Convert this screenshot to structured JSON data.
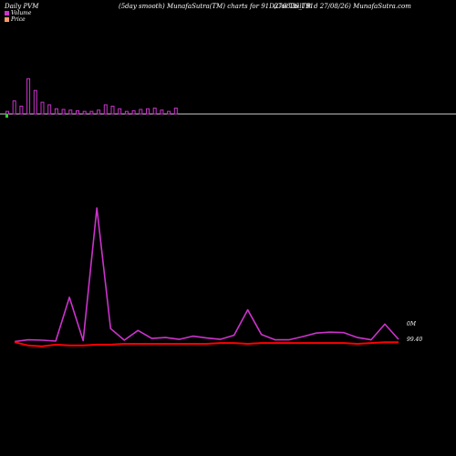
{
  "header": {
    "left": "Daily PVM",
    "middle": "(5day smooth) MunafaSutra(TM) charts for 91D270826_TB",
    "right": "(Goi Tbill 91d 27/08/26) MunafaSutra.com"
  },
  "legend": [
    {
      "label": "Volume",
      "color": "#cc33cc"
    },
    {
      "label": "Price",
      "color": "#ff9966"
    }
  ],
  "colors": {
    "volume_bar": "#cc33cc",
    "axis_line": "#cccccc",
    "volume_line": "#cc33cc",
    "price_line": "#ff0000",
    "first_bar": "#33cc33"
  },
  "chart_data": [
    {
      "type": "bar",
      "name": "volume-bars",
      "x": [
        1,
        2,
        3,
        4,
        5,
        6,
        7,
        8,
        9,
        10,
        11,
        12,
        13,
        14,
        15,
        16,
        17,
        18,
        19,
        20,
        21,
        22,
        23,
        24,
        25
      ],
      "values": [
        0.2,
        1.0,
        0.6,
        2.7,
        1.8,
        0.9,
        0.7,
        0.4,
        0.35,
        0.3,
        0.25,
        0.2,
        0.2,
        0.3,
        0.7,
        0.6,
        0.4,
        0.2,
        0.25,
        0.35,
        0.4,
        0.45,
        0.3,
        0.2,
        0.45
      ],
      "ylim": [
        0,
        3
      ]
    },
    {
      "type": "line",
      "name": "smoothed-volume-and-price",
      "x": [
        1,
        2,
        3,
        4,
        5,
        6,
        7,
        8,
        9,
        10,
        11,
        12,
        13,
        14,
        15,
        16,
        17,
        18,
        19,
        20,
        21,
        22,
        23,
        24,
        25,
        26,
        27,
        28,
        29
      ],
      "series": [
        {
          "name": "Volume",
          "values": [
            0.1,
            0.5,
            0.4,
            0.2,
            10,
            0.3,
            30,
            3,
            0.4,
            2.6,
            0.8,
            1.0,
            0.6,
            1.3,
            0.9,
            0.6,
            1.5,
            7.2,
            1.7,
            0.5,
            0.5,
            1.2,
            2.0,
            2.2,
            2.1,
            1.0,
            0.5,
            4.0,
            0.6
          ]
        },
        {
          "name": "Price",
          "values": [
            99.41,
            99.37,
            99.36,
            99.38,
            99.37,
            99.37,
            99.38,
            99.38,
            99.39,
            99.39,
            99.39,
            99.39,
            99.39,
            99.39,
            99.39,
            99.4,
            99.4,
            99.39,
            99.4,
            99.4,
            99.4,
            99.4,
            99.4,
            99.4,
            99.4,
            99.39,
            99.4,
            99.41,
            99.41
          ]
        }
      ],
      "volume_ylim": [
        0,
        35
      ],
      "price_ylim": [
        99.0,
        100.5
      ]
    }
  ],
  "axis_labels": {
    "volume_right": "0M",
    "price_right": "99.40"
  }
}
